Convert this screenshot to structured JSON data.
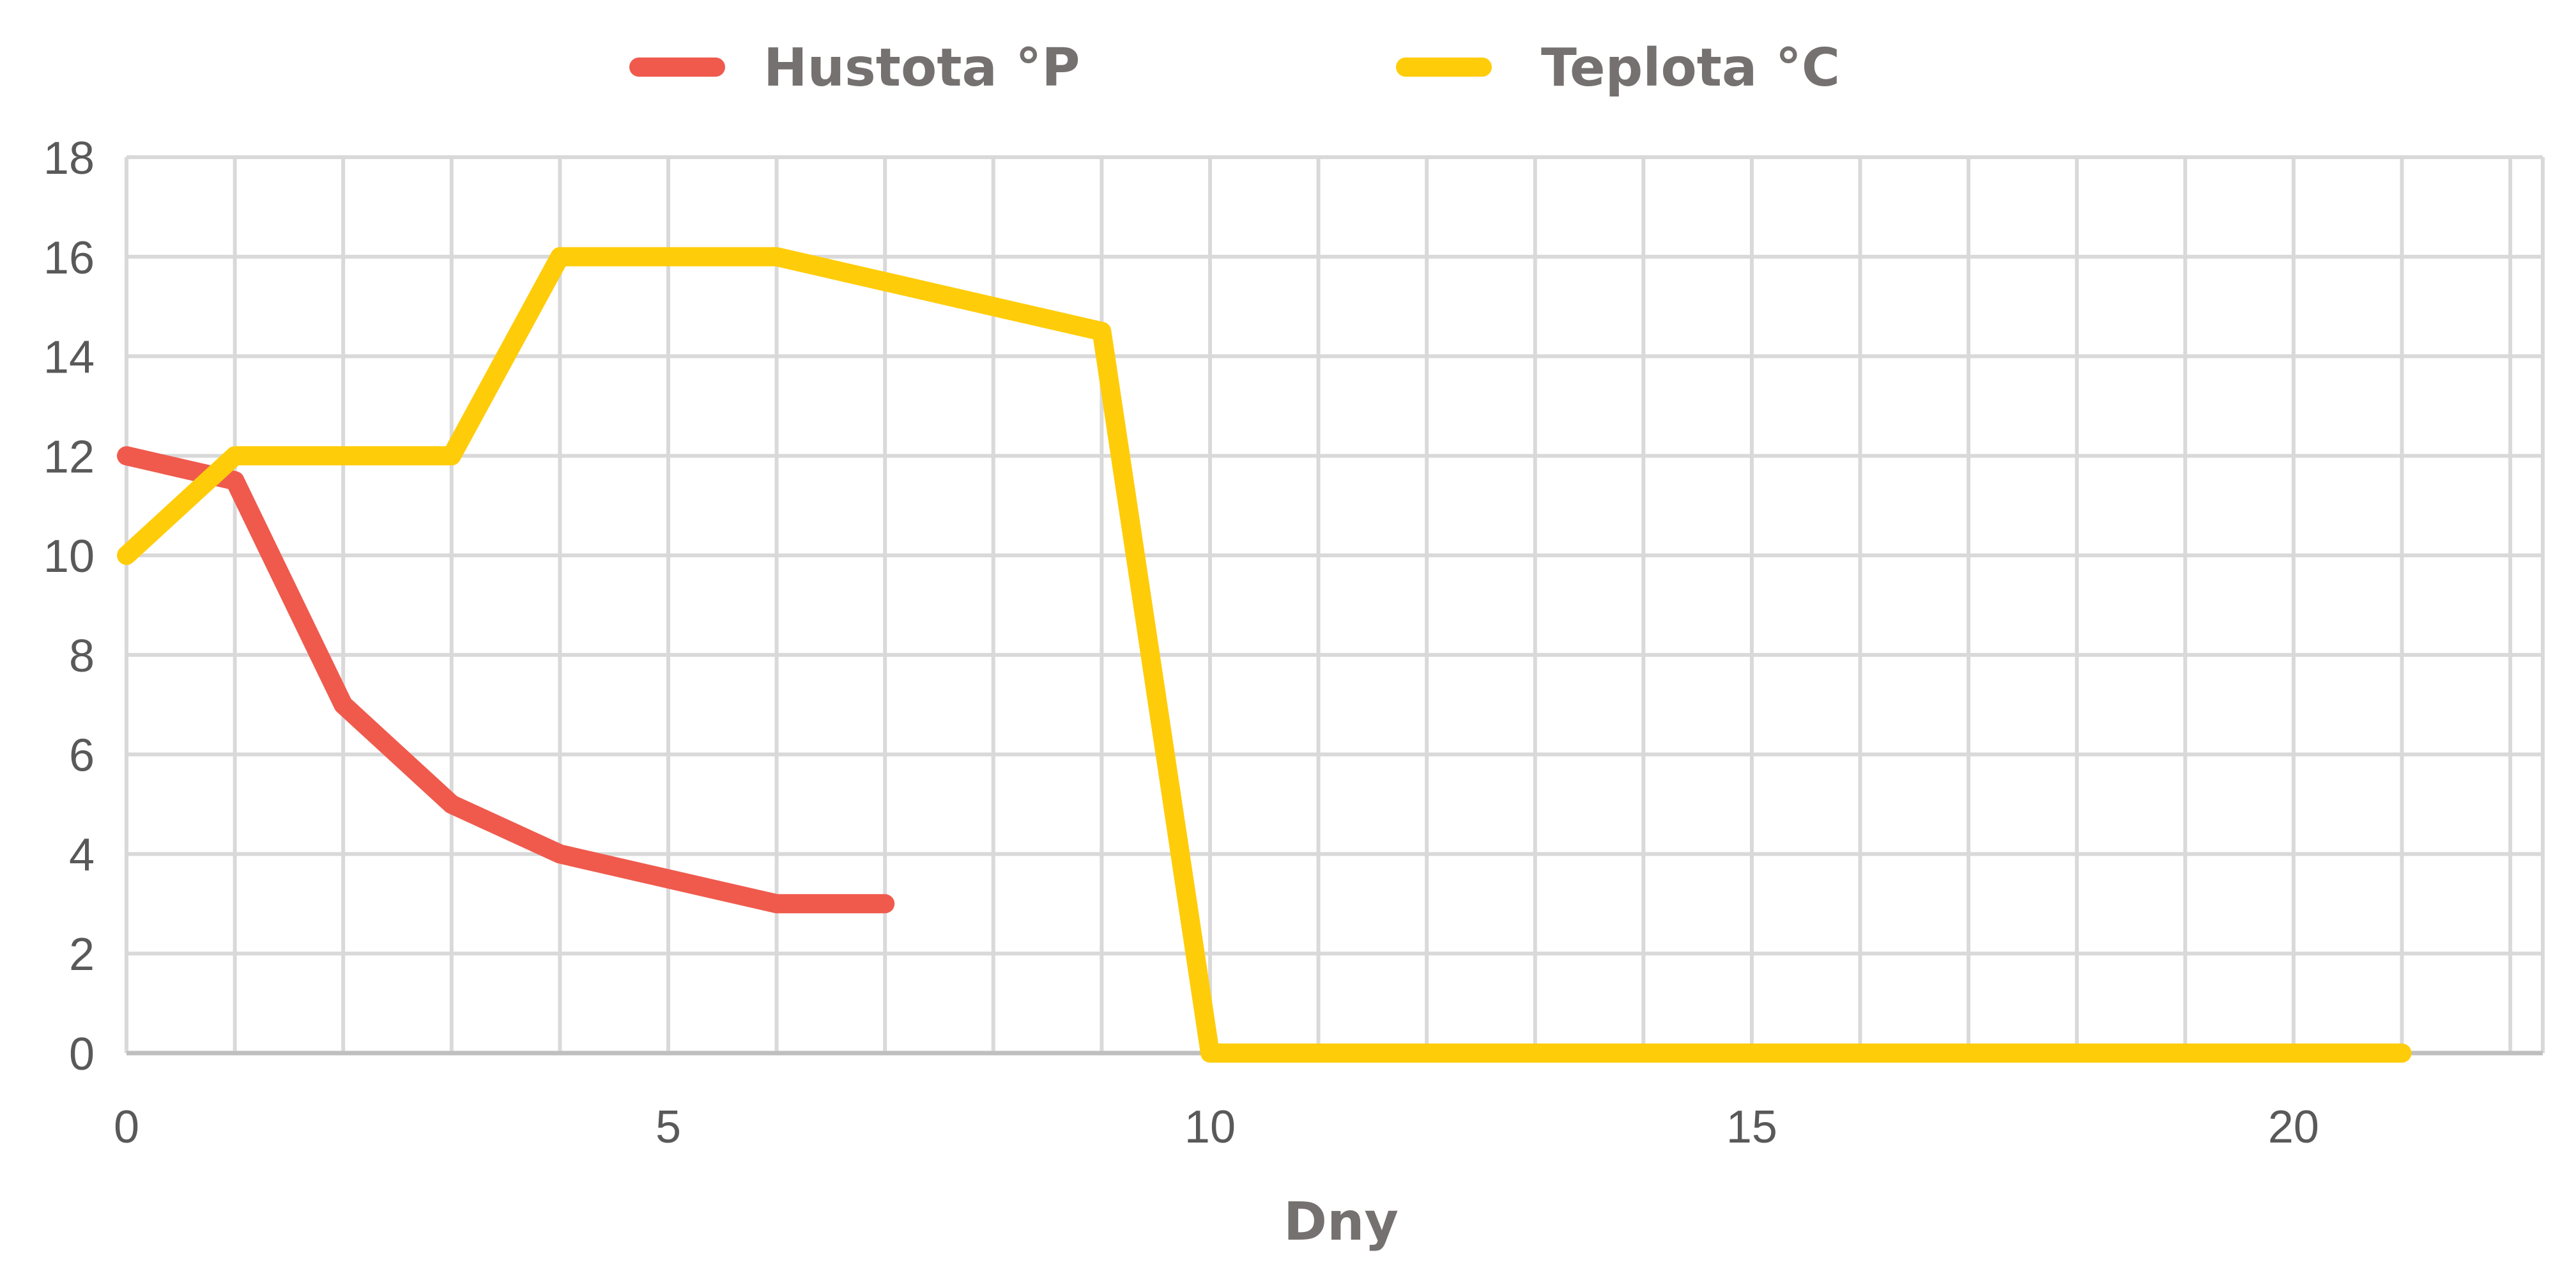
{
  "chart_data": {
    "type": "line",
    "xlabel": "Dny",
    "ylabel": "",
    "xlim": [
      0,
      22.3
    ],
    "ylim": [
      0,
      18
    ],
    "x_ticks": [
      0,
      5,
      10,
      15,
      20
    ],
    "y_ticks": [
      0,
      2,
      4,
      6,
      8,
      10,
      12,
      14,
      16,
      18
    ],
    "grid": true,
    "legend_position": "top",
    "series": [
      {
        "name": "Hustota °P",
        "color": "#ef5a4d",
        "points": [
          [
            0,
            12
          ],
          [
            1,
            11.5
          ],
          [
            2,
            7
          ],
          [
            3,
            5
          ],
          [
            4,
            4
          ],
          [
            5,
            3.5
          ],
          [
            6,
            3
          ],
          [
            7,
            3
          ]
        ]
      },
      {
        "name": "Teplota °C",
        "color": "#ffcc0a",
        "points": [
          [
            0,
            10
          ],
          [
            1,
            12
          ],
          [
            2,
            12
          ],
          [
            3,
            12
          ],
          [
            4,
            16
          ],
          [
            5,
            16
          ],
          [
            6,
            16
          ],
          [
            7,
            15.5
          ],
          [
            8,
            15
          ],
          [
            9,
            14.5
          ],
          [
            10,
            0
          ],
          [
            11,
            0
          ],
          [
            12,
            0
          ],
          [
            13,
            0
          ],
          [
            14,
            0
          ],
          [
            15,
            0
          ],
          [
            16,
            0
          ],
          [
            17,
            0
          ],
          [
            18,
            0
          ],
          [
            19,
            0
          ],
          [
            20,
            0
          ],
          [
            21,
            0
          ]
        ]
      }
    ]
  }
}
